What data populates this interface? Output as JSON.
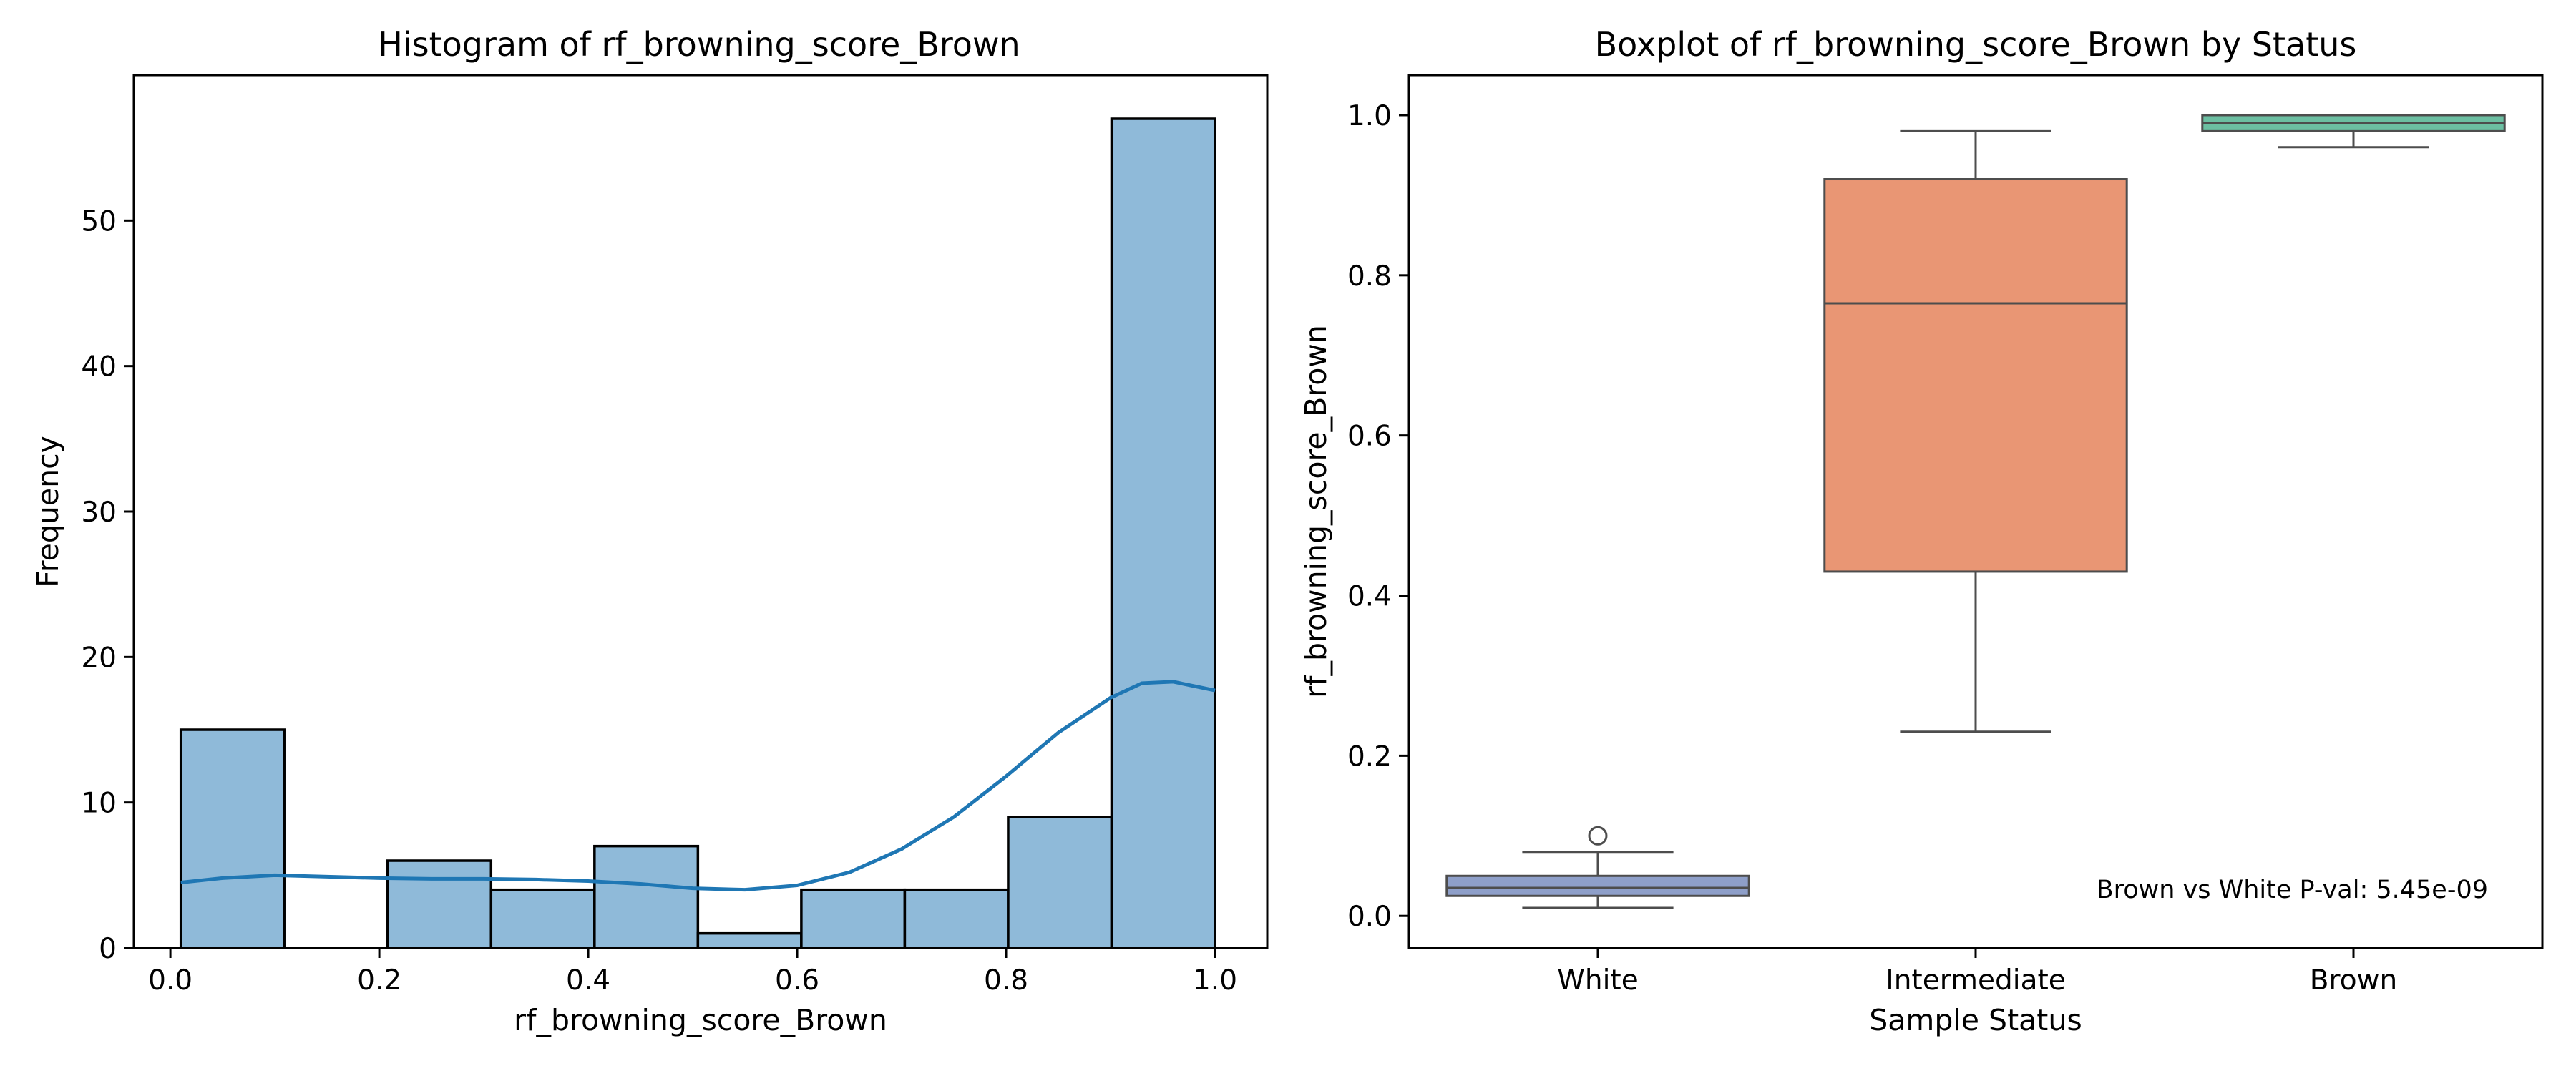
{
  "chart_data": [
    {
      "type": "bar",
      "subtype": "histogram with kde",
      "title": "Histogram of rf_browning_score_Brown",
      "xlabel": "rf_browning_score_Brown",
      "ylabel": "Frequency",
      "xlim": [
        -0.035,
        1.05
      ],
      "ylim": [
        0,
        60
      ],
      "xticks": [
        0.0,
        0.2,
        0.4,
        0.6,
        0.8,
        1.0
      ],
      "xtick_labels": [
        "0.0",
        "0.2",
        "0.4",
        "0.6",
        "0.8",
        "1.0"
      ],
      "yticks": [
        0,
        10,
        20,
        30,
        40,
        50
      ],
      "ytick_labels": [
        "0",
        "10",
        "20",
        "30",
        "40",
        "50"
      ],
      "bins": [
        {
          "x0": 0.01,
          "x1": 0.109,
          "count": 15
        },
        {
          "x0": 0.109,
          "x1": 0.208,
          "count": 0
        },
        {
          "x0": 0.208,
          "x1": 0.307,
          "count": 6
        },
        {
          "x0": 0.307,
          "x1": 0.406,
          "count": 4
        },
        {
          "x0": 0.406,
          "x1": 0.505,
          "count": 7
        },
        {
          "x0": 0.505,
          "x1": 0.604,
          "count": 1
        },
        {
          "x0": 0.604,
          "x1": 0.703,
          "count": 4
        },
        {
          "x0": 0.703,
          "x1": 0.802,
          "count": 4
        },
        {
          "x0": 0.802,
          "x1": 0.901,
          "count": 9
        },
        {
          "x0": 0.901,
          "x1": 1.0,
          "count": 57
        }
      ],
      "kde": {
        "x": [
          0.01,
          0.05,
          0.1,
          0.15,
          0.2,
          0.25,
          0.3,
          0.35,
          0.4,
          0.45,
          0.5,
          0.55,
          0.6,
          0.65,
          0.7,
          0.75,
          0.8,
          0.85,
          0.9,
          0.93,
          0.96,
          0.98,
          1.0
        ],
        "y": [
          4.5,
          4.8,
          5.0,
          4.9,
          4.8,
          4.75,
          4.75,
          4.7,
          4.6,
          4.4,
          4.1,
          4.0,
          4.3,
          5.2,
          6.8,
          9.0,
          11.8,
          14.8,
          17.2,
          18.2,
          18.3,
          18.0,
          17.7
        ]
      },
      "colors": {
        "bar_fill": "#8fbad9",
        "bar_edge": "#000000",
        "kde": "#1f77b4"
      },
      "grid": false
    },
    {
      "type": "boxplot",
      "title": "Boxplot of rf_browning_score_Brown by Status",
      "xlabel": "Sample Status",
      "ylabel": "rf_browning_score_Brown",
      "ylim": [
        -0.04,
        1.05
      ],
      "yticks": [
        0.0,
        0.2,
        0.4,
        0.6,
        0.8,
        1.0
      ],
      "ytick_labels": [
        "0.0",
        "0.2",
        "0.4",
        "0.6",
        "0.8",
        "1.0"
      ],
      "categories": [
        "White",
        "Intermediate",
        "Brown"
      ],
      "boxes": [
        {
          "category": "White",
          "whisker_low": 0.01,
          "q1": 0.025,
          "median": 0.035,
          "q3": 0.05,
          "whisker_high": 0.08,
          "outliers": [
            0.1
          ],
          "color": "#8e9fc9"
        },
        {
          "category": "Intermediate",
          "whisker_low": 0.23,
          "q1": 0.43,
          "median": 0.765,
          "q3": 0.92,
          "whisker_high": 0.98,
          "outliers": [],
          "color": "#e99674"
        },
        {
          "category": "Brown",
          "whisker_low": 0.96,
          "q1": 0.98,
          "median": 0.99,
          "q3": 1.0,
          "whisker_high": 1.0,
          "outliers": [],
          "color": "#6cbfa2"
        }
      ],
      "annotation": "Brown vs White P-val: 5.45e-09",
      "grid": false
    }
  ]
}
